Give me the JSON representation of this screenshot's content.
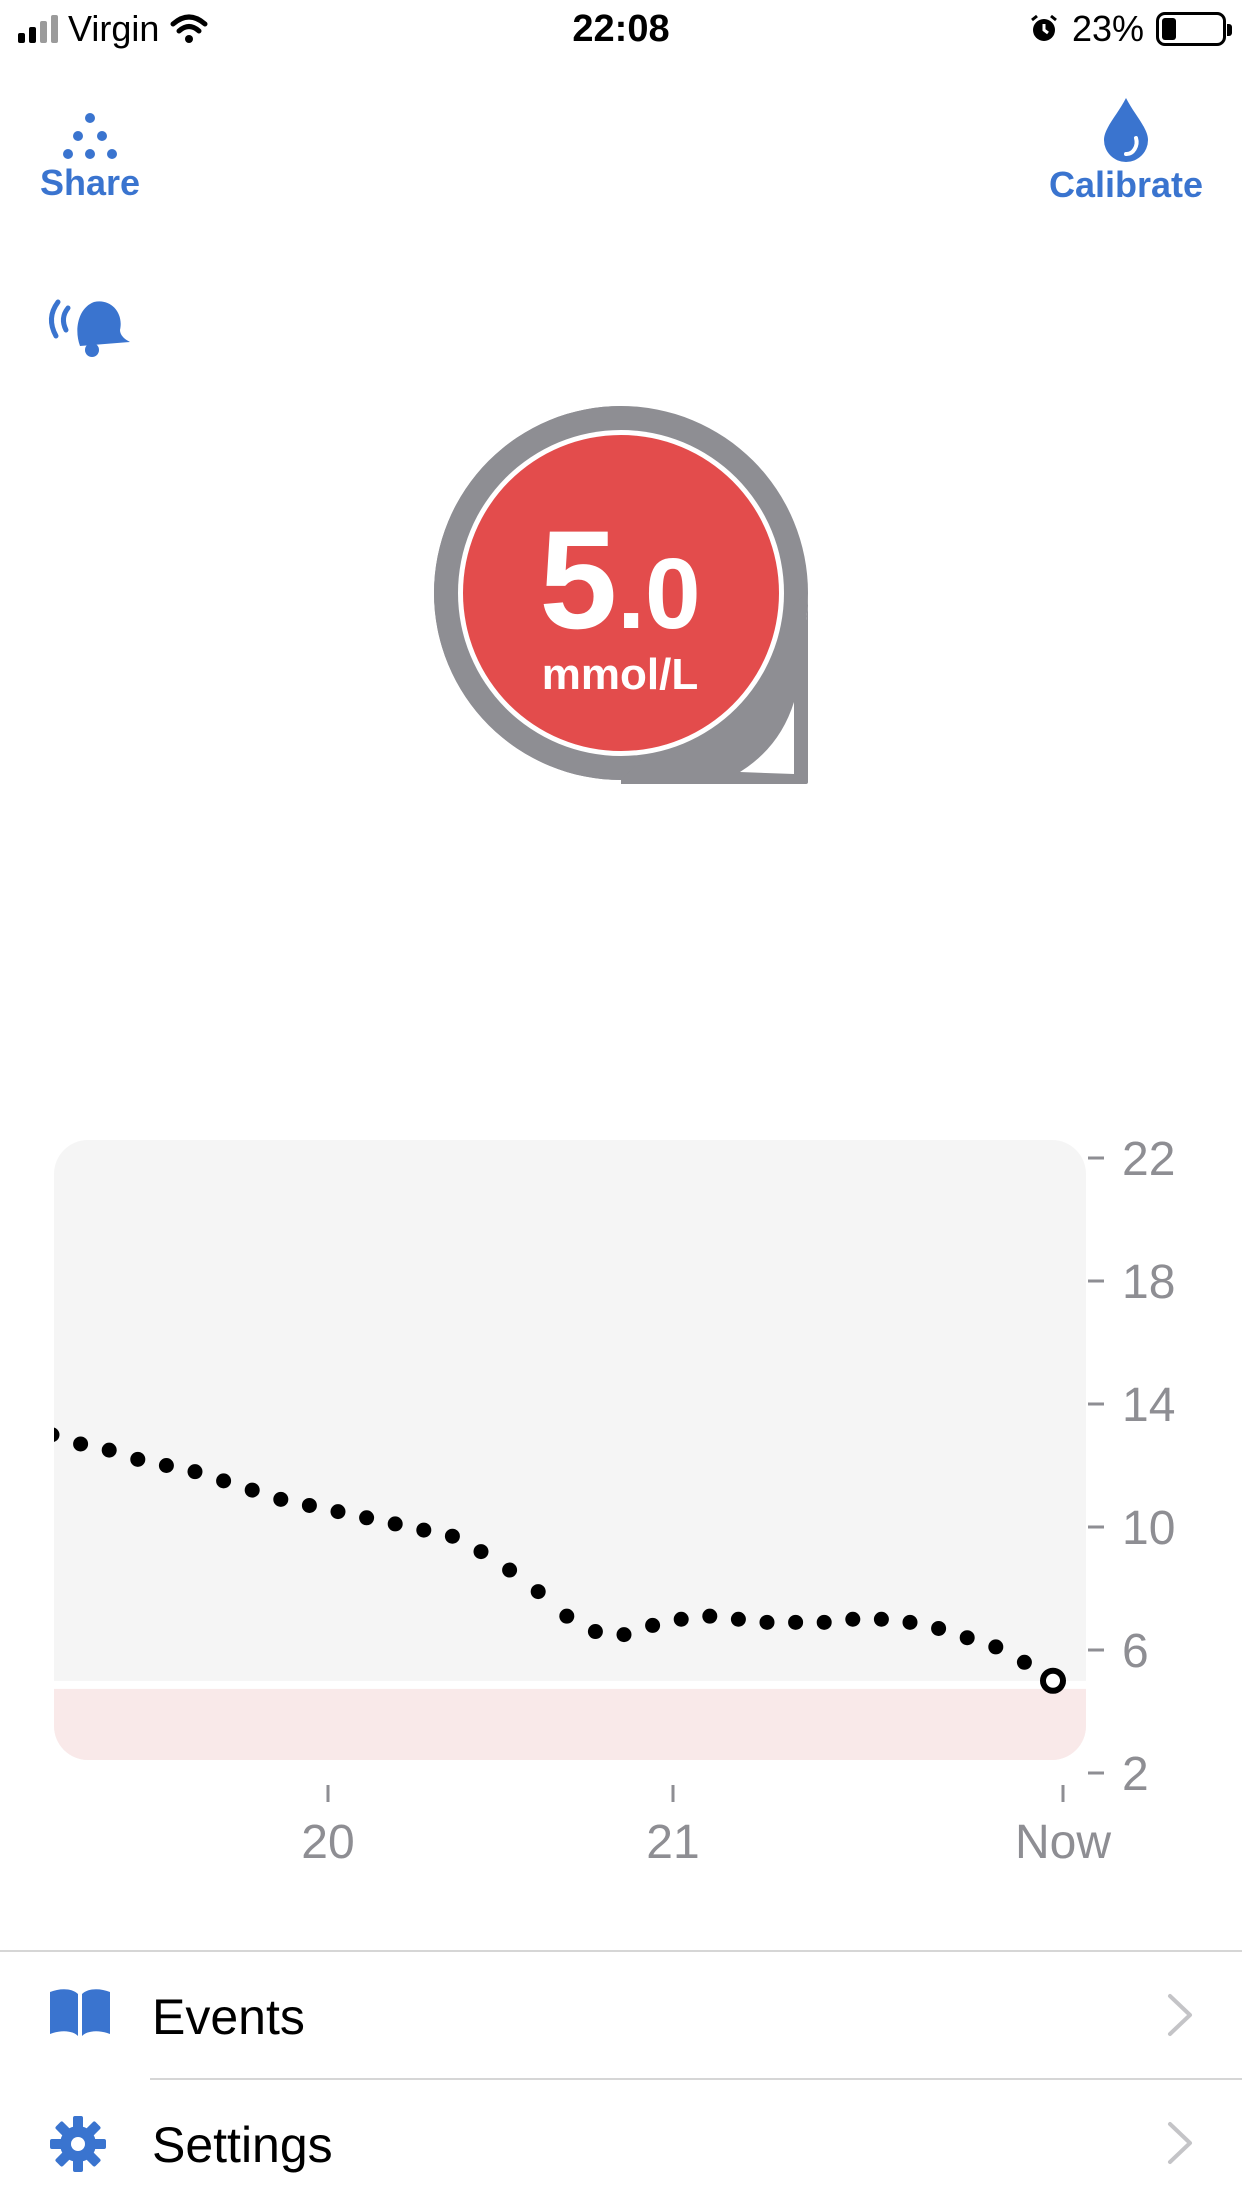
{
  "status_bar": {
    "carrier": "Virgin",
    "time": "22:08",
    "battery": "23%",
    "battery_level": 0.23
  },
  "toolbar": {
    "share_label": "Share",
    "calibrate_label": "Calibrate"
  },
  "reading": {
    "value_int": "5",
    "value_frac": ".0",
    "unit": "mmol/L",
    "color": "#e34c4c",
    "ring_color": "#8e8e93"
  },
  "chart_data": {
    "type": "scatter",
    "y_ticks": [
      "22",
      "18",
      "14",
      "10",
      "6",
      "2"
    ],
    "x_ticks": [
      "20",
      "21",
      "Now"
    ],
    "ylim": [
      2,
      23
    ],
    "low_threshold": 4.8,
    "points": [
      13.0,
      12.7,
      12.5,
      12.2,
      12.0,
      11.8,
      11.5,
      11.2,
      10.9,
      10.7,
      10.5,
      10.3,
      10.1,
      9.9,
      9.7,
      9.2,
      8.6,
      7.9,
      7.1,
      6.6,
      6.5,
      6.8,
      7.0,
      7.1,
      7.0,
      6.9,
      6.9,
      6.9,
      7.0,
      7.0,
      6.9,
      6.7,
      6.4,
      6.1,
      5.6
    ],
    "current": 5.0,
    "grid": false
  },
  "menu": {
    "events_label": "Events",
    "settings_label": "Settings"
  },
  "colors": {
    "accent": "#3a74cf",
    "plot_bg": "#f5f5f5",
    "low_band": "#f9e9e9"
  }
}
